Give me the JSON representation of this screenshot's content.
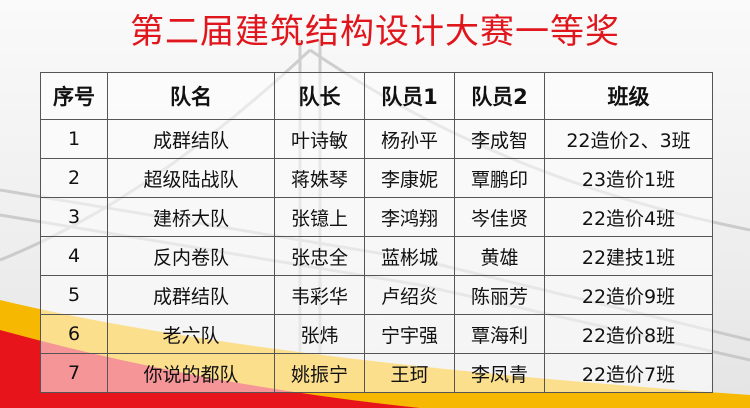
{
  "title": "第二届建筑结构设计大赛一等奖",
  "colors": {
    "title": "#e0161c",
    "accent_red": "#e8141b",
    "accent_yellow": "#f6b800"
  },
  "table": {
    "headers": [
      "序号",
      "队名",
      "队长",
      "队员1",
      "队员2",
      "班级"
    ],
    "rows": [
      [
        "1",
        "成群结队",
        "叶诗敏",
        "杨孙平",
        "李成智",
        "22造价2、3班"
      ],
      [
        "2",
        "超级陆战队",
        "蒋姝琴",
        "李康妮",
        "覃鹏印",
        "23造价1班"
      ],
      [
        "3",
        "建桥大队",
        "张镱上",
        "李鸿翔",
        "岑佳贤",
        "22造价4班"
      ],
      [
        "4",
        "反内卷队",
        "张忠全",
        "蓝彬城",
        "黄雄",
        "22建技1班"
      ],
      [
        "5",
        "成群结队",
        "韦彩华",
        "卢绍炎",
        "陈丽芳",
        "22造价9班"
      ],
      [
        "6",
        "老六队",
        "张炜",
        "宁宇强",
        "覃海利",
        "22造价8班"
      ],
      [
        "7",
        "你说的都队",
        "姚振宁",
        "王珂",
        "李凤青",
        "22造价7班"
      ]
    ]
  }
}
